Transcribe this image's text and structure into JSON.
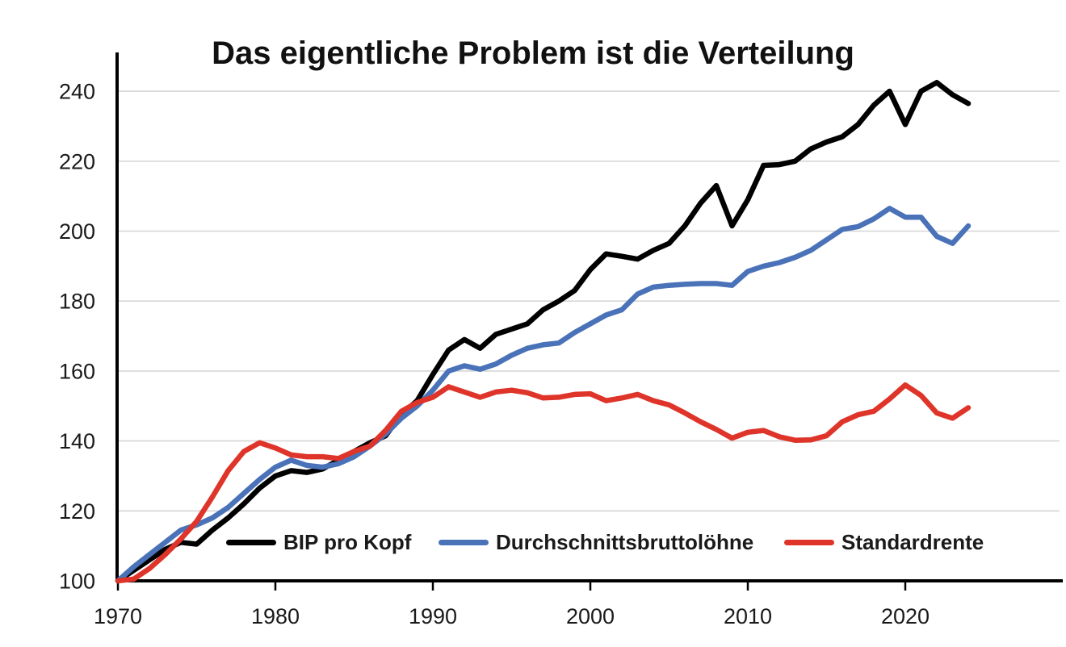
{
  "title": "Das eigentliche Problem ist die Verteilung",
  "chart_data": {
    "type": "line",
    "title": "Das eigentliche Problem ist die Verteilung",
    "x_start": 1970,
    "x_end": 2024,
    "x": [
      1970,
      1971,
      1972,
      1973,
      1974,
      1975,
      1976,
      1977,
      1978,
      1979,
      1980,
      1981,
      1982,
      1983,
      1984,
      1985,
      1986,
      1987,
      1988,
      1989,
      1990,
      1991,
      1992,
      1993,
      1994,
      1995,
      1996,
      1997,
      1998,
      1999,
      2000,
      2001,
      2002,
      2003,
      2004,
      2005,
      2006,
      2007,
      2008,
      2009,
      2010,
      2011,
      2012,
      2013,
      2014,
      2015,
      2016,
      2017,
      2018,
      2019,
      2020,
      2021,
      2022,
      2023,
      2024
    ],
    "series": [
      {
        "name": "BIP pro Kopf",
        "color": "#000000",
        "values": [
          100,
          103,
          106,
          109,
          111,
          110.5,
          114.5,
          118,
          122,
          126.5,
          130,
          131.5,
          131,
          132,
          134.5,
          137,
          139.5,
          141.5,
          147.5,
          151.5,
          159,
          166,
          169,
          166.5,
          170.5,
          172,
          173.5,
          177.5,
          180,
          183,
          189,
          193.5,
          192.8,
          192,
          194.5,
          196.5,
          201.5,
          208,
          213,
          201.5,
          209,
          218.8,
          219,
          220,
          223.5,
          225.5,
          227,
          230.5,
          236,
          240,
          230.5,
          240,
          242.5,
          239,
          236.5
        ]
      },
      {
        "name": "Durchschnittsbruttolöhne",
        "color": "#4A72B8",
        "values": [
          100,
          104,
          107.5,
          111,
          114.5,
          116,
          118,
          121,
          125,
          129,
          132.5,
          134.5,
          133,
          132.5,
          133.5,
          135.5,
          138.5,
          142,
          146.5,
          150,
          154.5,
          160,
          161.5,
          160.5,
          162,
          164.5,
          166.5,
          167.5,
          168,
          171,
          173.5,
          176,
          177.5,
          182,
          184,
          184.5,
          184.8,
          185,
          185,
          184.5,
          188.5,
          190,
          191,
          192.5,
          194.5,
          197.5,
          200.5,
          201.3,
          203.5,
          206.5,
          204,
          204,
          198.5,
          196.5,
          201.5
        ]
      },
      {
        "name": "Standardrente",
        "color": "#DF342A",
        "values": [
          100,
          100.5,
          103.5,
          107.5,
          112,
          117,
          124,
          131.5,
          137,
          139.5,
          138,
          136,
          135.5,
          135.5,
          135,
          137,
          138.5,
          143,
          148.5,
          151,
          152.5,
          155.5,
          154,
          152.5,
          154,
          154.5,
          153.8,
          152.3,
          152.5,
          153.3,
          153.5,
          151.5,
          152.3,
          153.3,
          151.5,
          150.3,
          148,
          145.5,
          143.3,
          140.8,
          142.5,
          143,
          141.2,
          140.2,
          140.3,
          141.5,
          145.5,
          147.5,
          148.5,
          152,
          156,
          153,
          148,
          146.5,
          149.5
        ]
      }
    ],
    "ylim": [
      100,
      245
    ],
    "yticks": [
      100,
      120,
      140,
      160,
      180,
      200,
      220,
      240
    ],
    "xticks": [
      1970,
      1980,
      1990,
      2000,
      2010,
      2020
    ],
    "grid": "horizontal",
    "grid_color": "#D6D6D6",
    "axis_color": "#000000",
    "legend_position": "bottom-inside"
  }
}
